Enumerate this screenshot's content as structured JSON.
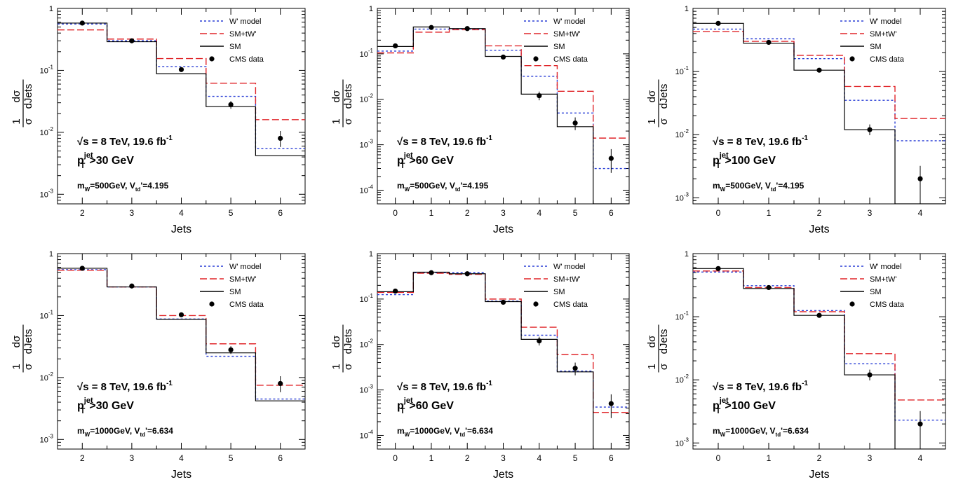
{
  "legend_labels": {
    "wp": "W' model",
    "smtw": "SM+tW'",
    "sm": "SM",
    "data": "CMS data"
  },
  "colors": {
    "wp": "#2a3fd6",
    "smtw": "#e0262a",
    "sm": "#000000",
    "data": "#000000"
  },
  "chart_data": [
    {
      "type": "line",
      "xlabel": "Jets",
      "ylabel": "1/σ dσ/dJets",
      "yscale": "log",
      "ylim": [
        0.0007,
        1
      ],
      "x": [
        2,
        3,
        4,
        5,
        6
      ],
      "xlim": [
        1.5,
        6.5
      ],
      "ytick_labels": [
        "1",
        "10",
        "10",
        "10"
      ],
      "ytick_exps": [
        "",
        "-1",
        "-2",
        "-3"
      ],
      "legend_position": "top-right",
      "annotation": {
        "energy": "√s = 8 TeV, 19.6 fb",
        "energy_sup": "-1",
        "cut_main": "p",
        "cut_sup": "jet",
        "cut_sub": "T",
        "cut_rest": ">30 GeV",
        "mass_main": "m",
        "mass_sub": "W",
        "mass_mid": "=500GeV, V",
        "mass_sub2": "td",
        "mass_rest": "'=4.195"
      },
      "series": [
        {
          "key": "wp",
          "values": [
            0.56,
            0.3,
            0.115,
            0.038,
            0.0055
          ]
        },
        {
          "key": "smtw",
          "values": [
            0.45,
            0.32,
            0.155,
            0.062,
            0.016
          ]
        },
        {
          "key": "sm",
          "values": [
            0.58,
            0.29,
            0.088,
            0.026,
            0.0042
          ]
        },
        {
          "key": "data",
          "values": [
            0.58,
            0.3,
            0.103,
            0.028,
            0.008
          ],
          "err_low": [
            0.55,
            0.285,
            0.097,
            0.024,
            0.0058
          ],
          "err_high": [
            0.61,
            0.315,
            0.109,
            0.032,
            0.0105
          ]
        }
      ]
    },
    {
      "type": "line",
      "xlabel": "Jets",
      "ylabel": "1/σ dσ/dJets",
      "yscale": "log",
      "ylim": [
        5e-05,
        1
      ],
      "x": [
        0,
        1,
        2,
        3,
        4,
        5,
        6
      ],
      "xlim": [
        -0.5,
        6.5
      ],
      "ytick_labels": [
        "1",
        "10",
        "10",
        "10",
        "10"
      ],
      "ytick_exps": [
        "",
        "-1",
        "-2",
        "-3",
        "-4"
      ],
      "legend_position": "top-right",
      "annotation": {
        "energy": "√s = 8 TeV, 19.6 fb",
        "energy_sup": "-1",
        "cut_main": "p",
        "cut_sup": "jet",
        "cut_sub": "T",
        "cut_rest": ">60 GeV",
        "mass_main": "m",
        "mass_sub": "W",
        "mass_mid": "=500GeV, V",
        "mass_sub2": "td",
        "mass_rest": "'=4.195"
      },
      "series": [
        {
          "key": "wp",
          "values": [
            0.115,
            0.35,
            0.35,
            0.12,
            0.032,
            0.005,
            0.0003
          ]
        },
        {
          "key": "smtw",
          "values": [
            0.105,
            0.3,
            0.34,
            0.15,
            0.055,
            0.015,
            0.0014
          ]
        },
        {
          "key": "sm",
          "values": [
            0.145,
            0.39,
            0.36,
            0.088,
            0.013,
            0.0025,
            1e-05
          ]
        },
        {
          "key": "data",
          "values": [
            0.15,
            0.38,
            0.36,
            0.085,
            0.012,
            0.003,
            0.0005
          ],
          "err_low": [
            0.14,
            0.36,
            0.34,
            0.078,
            0.0095,
            0.0021,
            0.00024
          ],
          "err_high": [
            0.16,
            0.4,
            0.38,
            0.092,
            0.0148,
            0.004,
            0.0008
          ]
        }
      ]
    },
    {
      "type": "line",
      "xlabel": "Jets",
      "ylabel": "1/σ dσ/dJets",
      "yscale": "log",
      "ylim": [
        0.0008,
        1
      ],
      "x": [
        0,
        1,
        2,
        3,
        4
      ],
      "xlim": [
        -0.5,
        4.5
      ],
      "ytick_labels": [
        "1",
        "10",
        "10",
        "10"
      ],
      "ytick_exps": [
        "",
        "-1",
        "-2",
        "-3"
      ],
      "legend_position": "top-right",
      "annotation": {
        "energy": "√s = 8 TeV, 19.6 fb",
        "energy_sup": "-1",
        "cut_main": "p",
        "cut_sup": "jet",
        "cut_sub": "T",
        "cut_rest": ">100 GeV",
        "mass_main": "m",
        "mass_sub": "W",
        "mass_mid": "=500GeV, V",
        "mass_sub2": "td",
        "mass_rest": "'=4.195"
      },
      "series": [
        {
          "key": "wp",
          "values": [
            0.47,
            0.33,
            0.16,
            0.035,
            0.008
          ]
        },
        {
          "key": "smtw",
          "values": [
            0.43,
            0.3,
            0.18,
            0.058,
            0.018
          ]
        },
        {
          "key": "sm",
          "values": [
            0.58,
            0.28,
            0.105,
            0.012,
            5e-05
          ]
        },
        {
          "key": "data",
          "values": [
            0.58,
            0.29,
            0.105,
            0.012,
            0.002
          ],
          "err_low": [
            0.55,
            0.275,
            0.1,
            0.0098,
            0.001
          ],
          "err_high": [
            0.61,
            0.305,
            0.11,
            0.0145,
            0.0032
          ]
        }
      ]
    },
    {
      "type": "line",
      "xlabel": "Jets",
      "ylabel": "1/σ dσ/dJets",
      "yscale": "log",
      "ylim": [
        0.0007,
        1
      ],
      "x": [
        2,
        3,
        4,
        5,
        6
      ],
      "xlim": [
        1.5,
        6.5
      ],
      "ytick_labels": [
        "1",
        "10",
        "10",
        "10"
      ],
      "ytick_exps": [
        "",
        "-1",
        "-2",
        "-3"
      ],
      "legend_position": "top-right",
      "annotation": {
        "energy": "√s = 8 TeV, 19.6 fb",
        "energy_sup": "-1",
        "cut_main": "p",
        "cut_sup": "jet",
        "cut_sub": "T",
        "cut_rest": ">30 GeV",
        "mass_main": "m",
        "mass_sub": "W",
        "mass_mid": "=1000GeV, V",
        "mass_sub2": "td",
        "mass_rest": "'=6.634"
      },
      "series": [
        {
          "key": "wp",
          "values": [
            0.55,
            0.29,
            0.088,
            0.022,
            0.0045
          ]
        },
        {
          "key": "smtw",
          "values": [
            0.54,
            0.29,
            0.1,
            0.035,
            0.0075
          ]
        },
        {
          "key": "sm",
          "values": [
            0.58,
            0.29,
            0.087,
            0.025,
            0.0042
          ]
        },
        {
          "key": "data",
          "values": [
            0.58,
            0.3,
            0.103,
            0.028,
            0.008
          ],
          "err_low": [
            0.55,
            0.285,
            0.097,
            0.024,
            0.0058
          ],
          "err_high": [
            0.61,
            0.315,
            0.109,
            0.032,
            0.0105
          ]
        }
      ]
    },
    {
      "type": "line",
      "xlabel": "Jets",
      "ylabel": "1/σ dσ/dJets",
      "yscale": "log",
      "ylim": [
        5e-05,
        1
      ],
      "x": [
        0,
        1,
        2,
        3,
        4,
        5,
        6
      ],
      "xlim": [
        -0.5,
        6.5
      ],
      "ytick_labels": [
        "1",
        "10",
        "10",
        "10",
        "10"
      ],
      "ytick_exps": [
        "",
        "-1",
        "-2",
        "-3",
        "-4"
      ],
      "legend_position": "top-right",
      "annotation": {
        "energy": "√s = 8 TeV, 19.6 fb",
        "energy_sup": "-1",
        "cut_main": "p",
        "cut_sup": "jet",
        "cut_sub": "T",
        "cut_rest": ">60 GeV",
        "mass_main": "m",
        "mass_sub": "W",
        "mass_mid": "=1000GeV, V",
        "mass_sub2": "td",
        "mass_rest": "'=6.634"
      },
      "series": [
        {
          "key": "wp",
          "values": [
            0.125,
            0.38,
            0.38,
            0.09,
            0.016,
            0.0026,
            0.00042
          ]
        },
        {
          "key": "smtw",
          "values": [
            0.14,
            0.37,
            0.35,
            0.1,
            0.024,
            0.006,
            0.00032
          ]
        },
        {
          "key": "sm",
          "values": [
            0.145,
            0.39,
            0.36,
            0.088,
            0.013,
            0.0025,
            1e-05
          ]
        },
        {
          "key": "data",
          "values": [
            0.15,
            0.38,
            0.36,
            0.085,
            0.012,
            0.003,
            0.0005
          ],
          "err_low": [
            0.14,
            0.36,
            0.34,
            0.078,
            0.0095,
            0.0021,
            0.00024
          ],
          "err_high": [
            0.16,
            0.4,
            0.38,
            0.092,
            0.0148,
            0.004,
            0.0008
          ]
        }
      ]
    },
    {
      "type": "line",
      "xlabel": "Jets",
      "ylabel": "1/σ dσ/dJets",
      "yscale": "log",
      "ylim": [
        0.0008,
        1
      ],
      "x": [
        0,
        1,
        2,
        3,
        4
      ],
      "xlim": [
        -0.5,
        4.5
      ],
      "ytick_labels": [
        "1",
        "10",
        "10",
        "10"
      ],
      "ytick_exps": [
        "",
        "-1",
        "-2",
        "-3"
      ],
      "legend_position": "top-right",
      "annotation": {
        "energy": "√s = 8 TeV, 19.6 fb",
        "energy_sup": "-1",
        "cut_main": "p",
        "cut_sup": "jet",
        "cut_sub": "T",
        "cut_rest": ">100 GeV",
        "mass_main": "m",
        "mass_sub": "W",
        "mass_mid": "=1000GeV, V",
        "mass_sub2": "td",
        "mass_rest": "'=6.634"
      },
      "series": [
        {
          "key": "wp",
          "values": [
            0.51,
            0.31,
            0.125,
            0.018,
            0.0023
          ]
        },
        {
          "key": "smtw",
          "values": [
            0.53,
            0.29,
            0.12,
            0.026,
            0.0048
          ]
        },
        {
          "key": "sm",
          "values": [
            0.58,
            0.28,
            0.105,
            0.012,
            5e-05
          ]
        },
        {
          "key": "data",
          "values": [
            0.58,
            0.29,
            0.105,
            0.012,
            0.002
          ],
          "err_low": [
            0.55,
            0.275,
            0.1,
            0.0098,
            0.001
          ],
          "err_high": [
            0.61,
            0.305,
            0.11,
            0.0145,
            0.0032
          ]
        }
      ]
    }
  ]
}
